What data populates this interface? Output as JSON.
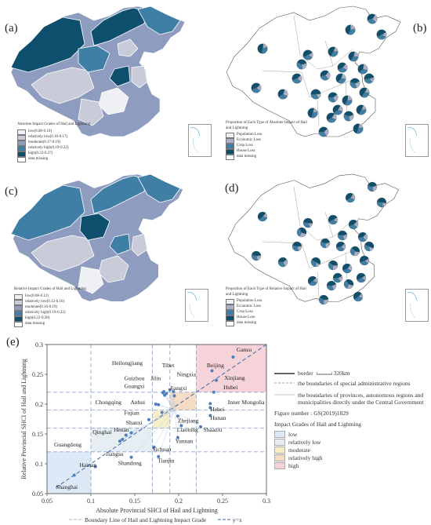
{
  "panels": {
    "a": {
      "label": "(a)",
      "legend_title": "Absolute Impact Grades of Hail and Lightning",
      "legend_items": [
        {
          "label": "low(0.08-0.10)",
          "color": "#eef0f3"
        },
        {
          "label": "relatively low(0.10-0.17)",
          "color": "#c9cbd9"
        },
        {
          "label": "moderate(0.17-0.19)",
          "color": "#8e9cc0"
        },
        {
          "label": "relatively high(0.19-0.22)",
          "color": "#3f7fa5"
        },
        {
          "label": "high(0.22-0.27)",
          "color": "#0e4f6e"
        },
        {
          "label": "data missing",
          "color": "#ffffff"
        }
      ]
    },
    "b": {
      "label": "(b)",
      "legend_title": "Proportion of Each Type of Absolute Impact of Hail and Lightning",
      "legend_items": [
        {
          "label": "Population Loss",
          "color": "#eef0f3"
        },
        {
          "label": "Economic Loss",
          "color": "#a9b2cc"
        },
        {
          "label": "Crop Loss",
          "color": "#3f7fa5"
        },
        {
          "label": "House Loss",
          "color": "#0e4f6e"
        },
        {
          "label": "data missing",
          "color": "#ffffff"
        }
      ]
    },
    "c": {
      "label": "(c)",
      "legend_title": "Relative Impact Grades of Hail and Lightning",
      "legend_items": [
        {
          "label": "low(0.08-0.12)",
          "color": "#eef0f3"
        },
        {
          "label": "relatively low(0.12-0.16)",
          "color": "#c9cbd9"
        },
        {
          "label": "moderate(0.16-0.19)",
          "color": "#8e9cc0"
        },
        {
          "label": "relatively high(0.19-0.22)",
          "color": "#3f7fa5"
        },
        {
          "label": "high(0.22-0.28)",
          "color": "#0e4f6e"
        },
        {
          "label": "data missing",
          "color": "#ffffff"
        }
      ]
    },
    "d": {
      "label": "(d)",
      "legend_title": "Proportion of Each Type of Relative Impact of Hail and Lightning",
      "legend_items": [
        {
          "label": "Population Loss",
          "color": "#eef0f3"
        },
        {
          "label": "Economic Loss",
          "color": "#a9b2cc"
        },
        {
          "label": "Crop Loss",
          "color": "#3f7fa5"
        },
        {
          "label": "House Loss",
          "color": "#0e4f6e"
        },
        {
          "label": "data missing",
          "color": "#ffffff"
        }
      ]
    },
    "e": {
      "label": "(e)"
    }
  },
  "map_notes": {
    "border_label": "border",
    "scale_label": "320km",
    "sar_boundary": "the boundaries of special administrative regions",
    "province_boundary": "the boundaries of provinces, autonomous regions and municipalities directly under the Central Government",
    "figure_number": "Figure number : GS(2019)1829",
    "grades_title": "Impact Grades of Hail and Lightning",
    "grades": [
      {
        "label": "low",
        "color": "#dde9f6"
      },
      {
        "label": "relatively low",
        "color": "#e6eef4"
      },
      {
        "label": "moderate",
        "color": "#f7efc9"
      },
      {
        "label": "relatively high",
        "color": "#f5dcc4"
      },
      {
        "label": "high",
        "color": "#f6d3d8"
      }
    ]
  },
  "chart_data": {
    "type": "scatter",
    "xlabel": "Absolute Provincial SHCI of Hail and Lightning",
    "ylabel": "Relative Provincial SHCI of Hail and Lightning",
    "xlim": [
      0.05,
      0.3
    ],
    "ylim": [
      0.05,
      0.3
    ],
    "xticks": [
      "0.05",
      "0.1",
      "0.15",
      "0.2",
      "0.25",
      "0.3"
    ],
    "yticks": [
      "0.05",
      "0.1",
      "0.15",
      "0.2",
      "0.25",
      "0.3"
    ],
    "grade_bounds_x": [
      0.1,
      0.17,
      0.19,
      0.22
    ],
    "grade_bounds_y": [
      0.12,
      0.16,
      0.19,
      0.22
    ],
    "grade_colors": [
      "#dde9f6",
      "#e6eef4",
      "#f7efc9",
      "#f5dcc4",
      "#f6d3d8"
    ],
    "boundary_legend": "Boundary Line of Hail and Lightning Impact Grade",
    "ref_legend": "y=x",
    "points": [
      {
        "name": "Gansu",
        "x": 0.262,
        "y": 0.279,
        "lx": 0.266,
        "ly": 0.288
      },
      {
        "name": "Beijing",
        "x": 0.238,
        "y": 0.256,
        "lx": 0.232,
        "ly": 0.262
      },
      {
        "name": "Xinjiang",
        "x": 0.243,
        "y": 0.24,
        "lx": 0.252,
        "ly": 0.241
      },
      {
        "name": "Tibet",
        "x": 0.19,
        "y": 0.224,
        "lx": 0.181,
        "ly": 0.262
      },
      {
        "name": "Heilongjiang",
        "x": 0.183,
        "y": 0.221,
        "lx": 0.124,
        "ly": 0.266
      },
      {
        "name": "Ningxia",
        "x": 0.194,
        "y": 0.221,
        "lx": 0.198,
        "ly": 0.247
      },
      {
        "name": "Guizhou",
        "x": 0.182,
        "y": 0.219,
        "lx": 0.138,
        "ly": 0.24
      },
      {
        "name": "Jilin",
        "x": 0.186,
        "y": 0.218,
        "lx": 0.168,
        "ly": 0.24
      },
      {
        "name": "Guangxi",
        "x": 0.184,
        "y": 0.215,
        "lx": 0.138,
        "ly": 0.227
      },
      {
        "name": "Jiangxi",
        "x": 0.195,
        "y": 0.214,
        "lx": 0.19,
        "ly": 0.224
      },
      {
        "name": "Hubei",
        "x": 0.24,
        "y": 0.22,
        "lx": 0.251,
        "ly": 0.225
      },
      {
        "name": "Inner Mongolia",
        "x": 0.236,
        "y": 0.201,
        "lx": 0.256,
        "ly": 0.2
      },
      {
        "name": "Chongqing",
        "x": 0.174,
        "y": 0.2,
        "lx": 0.105,
        "ly": 0.2
      },
      {
        "name": "Anhui",
        "x": 0.177,
        "y": 0.199,
        "lx": 0.145,
        "ly": 0.2
      },
      {
        "name": "Hebei",
        "x": 0.236,
        "y": 0.194,
        "lx": 0.236,
        "ly": 0.188
      },
      {
        "name": "Hunan",
        "x": 0.236,
        "y": 0.181,
        "lx": 0.236,
        "ly": 0.174
      },
      {
        "name": "Fujian",
        "x": 0.181,
        "y": 0.186,
        "lx": 0.138,
        "ly": 0.182
      },
      {
        "name": "Zhejiang",
        "x": 0.199,
        "y": 0.18,
        "lx": 0.199,
        "ly": 0.169
      },
      {
        "name": "Shanxi",
        "x": 0.166,
        "y": 0.174,
        "lx": 0.14,
        "ly": 0.166
      },
      {
        "name": "Liaoning",
        "x": 0.203,
        "y": 0.164,
        "lx": 0.198,
        "ly": 0.154
      },
      {
        "name": "Shaanxi",
        "x": 0.225,
        "y": 0.162,
        "lx": 0.228,
        "ly": 0.154
      },
      {
        "name": "Qinghai",
        "x": 0.146,
        "y": 0.152,
        "lx": 0.102,
        "ly": 0.15
      },
      {
        "name": "Henan",
        "x": 0.14,
        "y": 0.148,
        "lx": 0.126,
        "ly": 0.154
      },
      {
        "name": "Yunnan",
        "x": 0.199,
        "y": 0.144,
        "lx": 0.196,
        "ly": 0.135
      },
      {
        "name": "Sichuan",
        "x": 0.172,
        "y": 0.128,
        "lx": 0.17,
        "ly": 0.121
      },
      {
        "name": "Guangdong",
        "x": 0.136,
        "y": 0.141,
        "lx": 0.058,
        "ly": 0.129
      },
      {
        "name": "Jiangsu",
        "x": 0.133,
        "y": 0.138,
        "lx": 0.117,
        "ly": 0.113
      },
      {
        "name": "Tianjin",
        "x": 0.177,
        "y": 0.112,
        "lx": 0.176,
        "ly": 0.102
      },
      {
        "name": "Shandong",
        "x": 0.146,
        "y": 0.111,
        "lx": 0.131,
        "ly": 0.098
      },
      {
        "name": "Hainan",
        "x": 0.105,
        "y": 0.095,
        "lx": 0.087,
        "ly": 0.095
      },
      {
        "name": "Shanghai",
        "x": 0.081,
        "y": 0.081,
        "lx": 0.06,
        "ly": 0.058
      }
    ]
  }
}
